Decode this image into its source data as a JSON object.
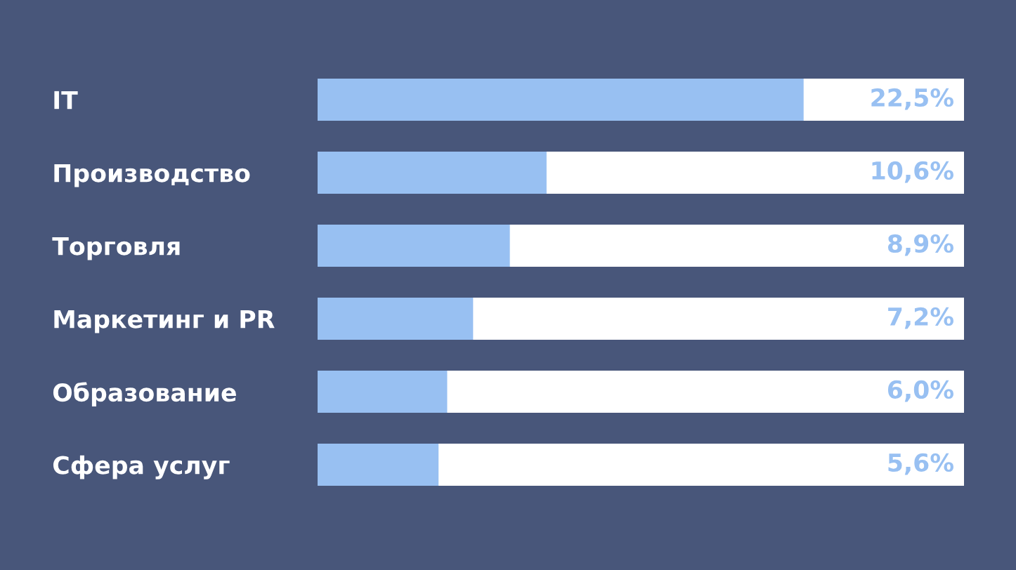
{
  "chart_data": {
    "type": "bar",
    "orientation": "horizontal",
    "categories": [
      "IT",
      "Производство",
      "Торговля",
      "Маркетинг и PR",
      "Образование",
      "Сфера услуг"
    ],
    "values": [
      22.5,
      10.6,
      8.9,
      7.2,
      6.0,
      5.6
    ],
    "value_labels": [
      "22,5%",
      "10,6%",
      "8,9%",
      "7,2%",
      "6,0%",
      "5,6%"
    ],
    "color": "#98c0f2",
    "tick_labels": "y"
  }
}
